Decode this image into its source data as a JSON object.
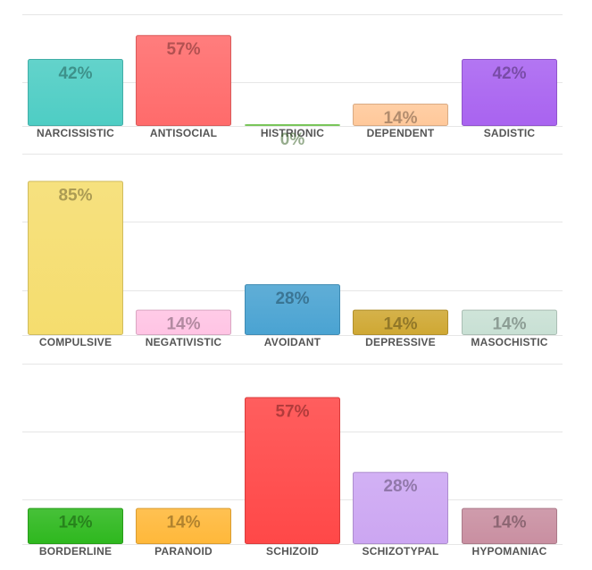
{
  "chart_data": [
    {
      "type": "bar",
      "categories": [
        "NARCISSISTIC",
        "ANTISOCIAL",
        "HISTRIONIC",
        "DEPENDENT",
        "SADISTIC"
      ],
      "values": [
        42,
        57,
        0,
        14,
        42
      ],
      "value_labels": [
        "42%",
        "57%",
        "0%",
        "14%",
        "42%"
      ],
      "colors": [
        "#4ecdc4",
        "#ff6b6b",
        "#8ee86a",
        "#ffc89a",
        "#a963f0"
      ],
      "ylim": [
        0,
        70
      ],
      "grid": true
    },
    {
      "type": "bar",
      "categories": [
        "COMPULSIVE",
        "NEGATIVISTIC",
        "AVOIDANT",
        "DEPRESSIVE",
        "MASOCHISTIC"
      ],
      "values": [
        85,
        14,
        28,
        14,
        14
      ],
      "value_labels": [
        "85%",
        "14%",
        "28%",
        "14%",
        "14%"
      ],
      "colors": [
        "#f5dd6e",
        "#ffc4e4",
        "#4aa3d2",
        "#cfa833",
        "#c8e0d4"
      ],
      "ylim": [
        0,
        100
      ],
      "grid": true
    },
    {
      "type": "bar",
      "categories": [
        "BORDERLINE",
        "PARANOID",
        "SCHIZOID",
        "SCHIZOTYPAL",
        "HYPOMANIAC"
      ],
      "values": [
        14,
        14,
        57,
        28,
        14
      ],
      "value_labels": [
        "14%",
        "14%",
        "57%",
        "28%",
        "14%"
      ],
      "colors": [
        "#2eb81e",
        "#ffb83a",
        "#ff4848",
        "#cca6f2",
        "#c98fa1"
      ],
      "ylim": [
        0,
        70
      ],
      "grid": true
    }
  ]
}
